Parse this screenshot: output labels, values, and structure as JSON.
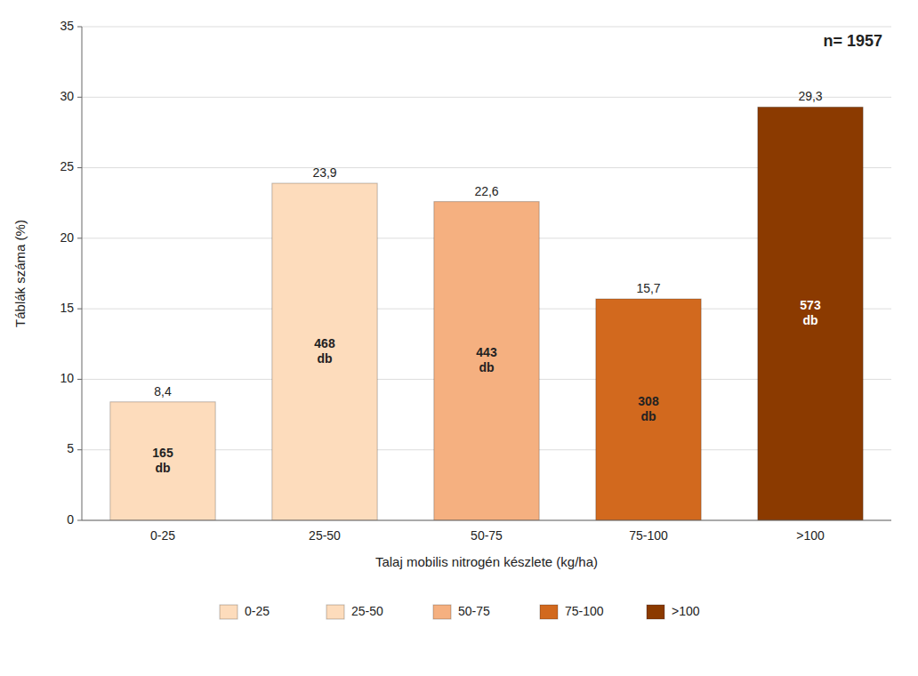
{
  "chart_data": {
    "type": "bar",
    "categories": [
      "0-25",
      "25-50",
      "50-75",
      "75-100",
      ">100"
    ],
    "values": [
      8.4,
      23.9,
      22.6,
      15.7,
      29.3
    ],
    "value_labels": [
      "8,4",
      "23,9",
      "22,6",
      "15,7",
      "29,3"
    ],
    "data_labels": true,
    "count_labels": [
      "165\ndb",
      "468\ndb",
      "443\ndb",
      "308\ndb",
      "573\ndb"
    ],
    "colors": [
      "#FDDCBC",
      "#FDDCBC",
      "#F5B080",
      "#D2691E",
      "#8B3A00"
    ],
    "ylabel": "Táblák száma (%)",
    "xlabel": "Talaj mobilis nitrogén készlete (kg/ha)",
    "annotation": "n= 1957",
    "ylim": [
      0,
      35
    ],
    "yticks": [
      0,
      5,
      10,
      15,
      20,
      25,
      30,
      35
    ],
    "grid": true,
    "legend": "bottom"
  }
}
